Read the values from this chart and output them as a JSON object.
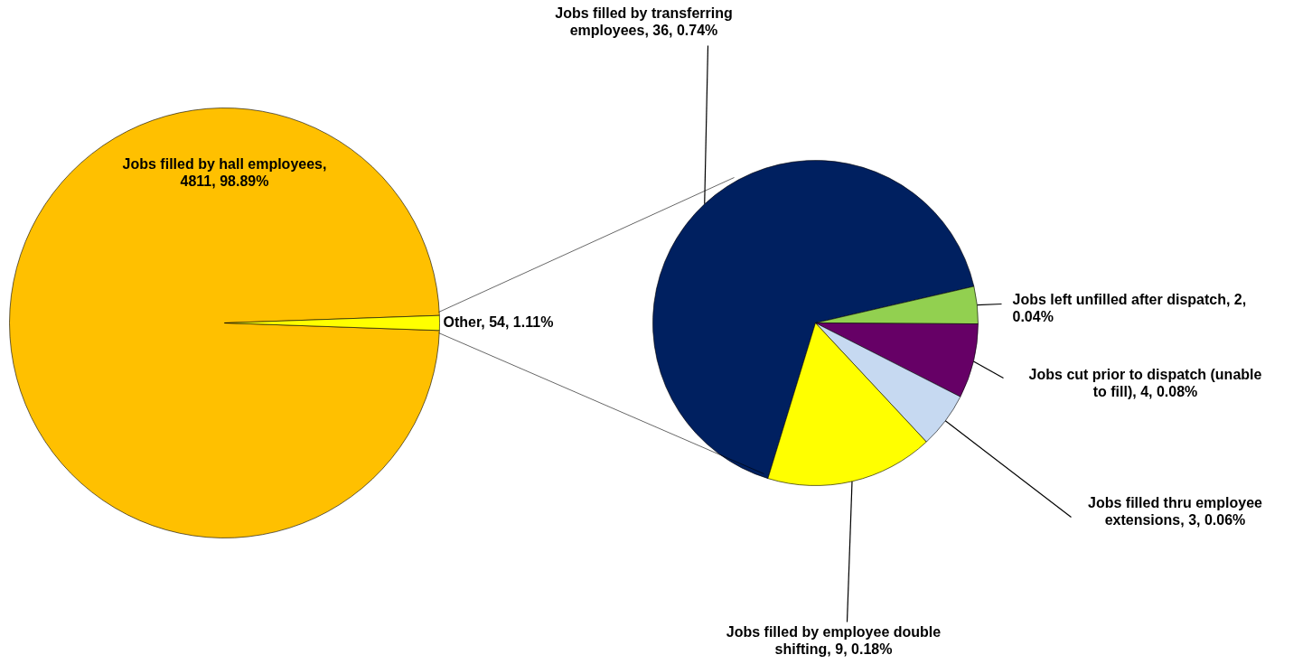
{
  "chart_data": [
    {
      "type": "pie",
      "categories": [
        "Jobs filled by hall employees, 4811, 98.89%",
        "Other, 54, 1.11%"
      ],
      "values": [
        4811,
        54
      ],
      "colors": [
        "#ffc000",
        "#ffff00"
      ]
    },
    {
      "type": "pie",
      "categories": [
        "Jobs filled by transferring employees, 36, 0.74%",
        "Jobs left unfilled after dispatch, 2, 0.04%",
        "Jobs cut prior to dispatch (unable to fill), 4, 0.08%",
        "Jobs filled thru employee extensions, 3, 0.06%",
        "Jobs filled by employee double shifting, 9, 0.18%"
      ],
      "values": [
        36,
        2,
        4,
        3,
        9
      ],
      "colors": [
        "#002060",
        "#92d050",
        "#660066",
        "#c6d9f1",
        "#ffff00"
      ]
    }
  ]
}
